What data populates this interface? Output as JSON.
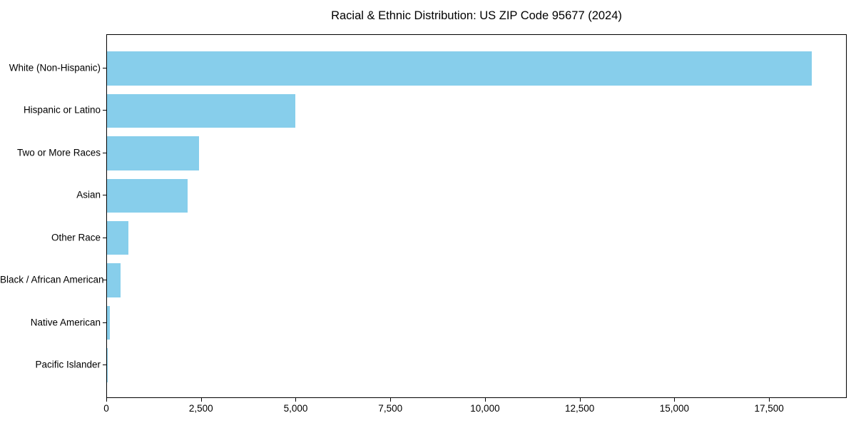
{
  "chart_data": {
    "type": "bar",
    "orientation": "horizontal",
    "title": "Racial & Ethnic Distribution: US ZIP Code 95677 (2024)",
    "categories": [
      "White (Non-Hispanic)",
      "Hispanic or Latino",
      "Two or More Races",
      "Asian",
      "Other Race",
      "Black / African American",
      "Native American",
      "Pacific Islander"
    ],
    "values": [
      18600,
      4970,
      2430,
      2130,
      570,
      360,
      75,
      25
    ],
    "xlabel": "",
    "ylabel": "",
    "xlim": [
      0,
      19550
    ],
    "xticks": [
      0,
      2500,
      5000,
      7500,
      10000,
      12500,
      15000,
      17500
    ],
    "xtick_labels": [
      "0",
      "2,500",
      "5,000",
      "7,500",
      "10,000",
      "12,500",
      "15,000",
      "17,500"
    ],
    "bar_color": "#87CEEB",
    "grid": false,
    "legend": "none",
    "background_color": "#ffffff",
    "axis_color": "#000000"
  }
}
